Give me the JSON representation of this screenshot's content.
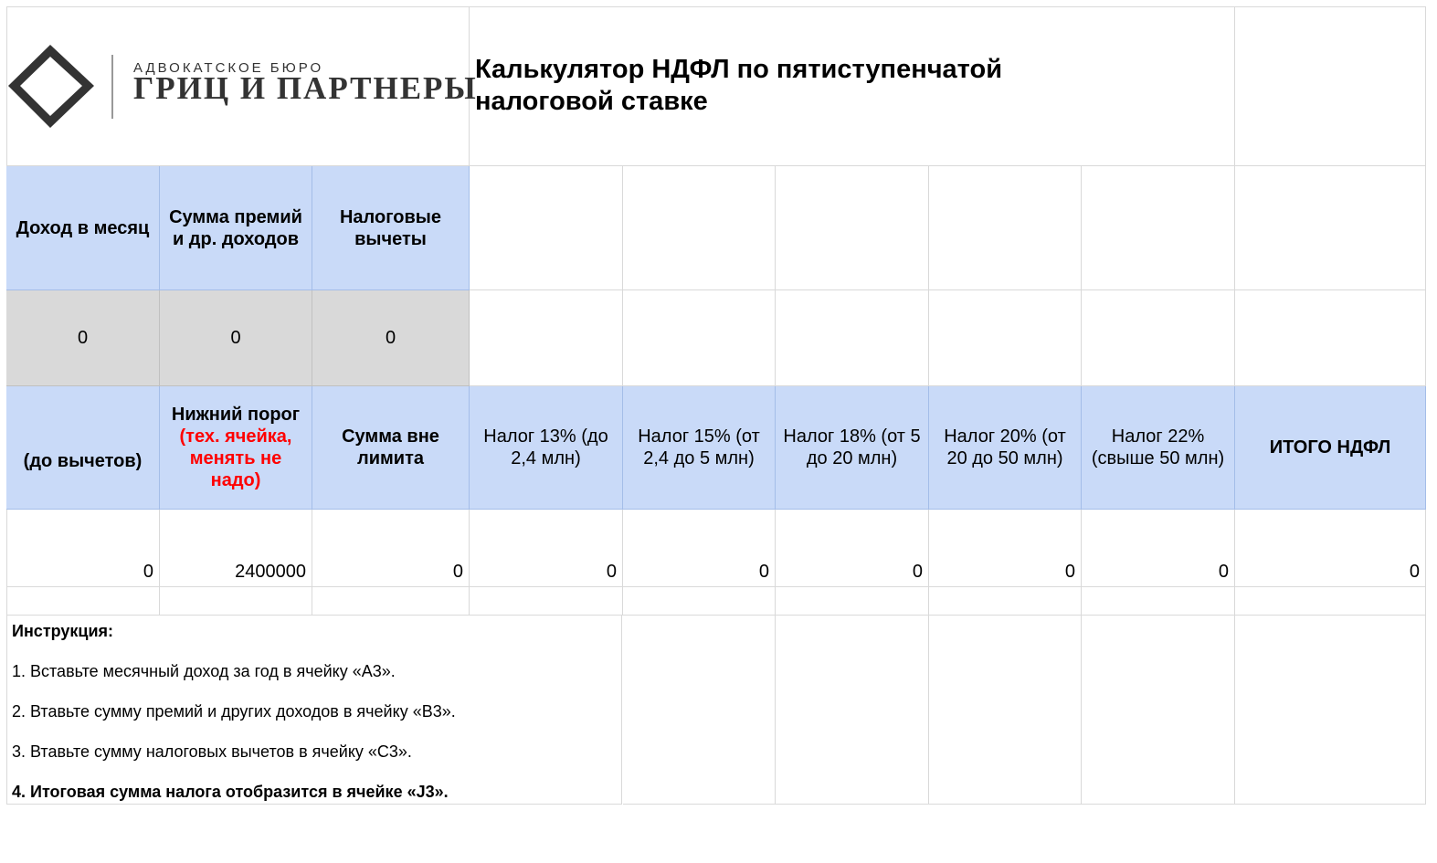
{
  "logo": {
    "subtitle": "АДВОКАТСКОЕ БЮРО",
    "name": "ГРИЦ И ПАРТНЕРЫ"
  },
  "title": "Калькулятор НДФЛ по пятиступенчатой налоговой ставке",
  "input_headers": {
    "income": "Доход в месяц",
    "bonuses": "Сумма премий и др. доходов",
    "deductions": "Налоговые вычеты"
  },
  "input_values": {
    "income": "0",
    "bonuses": "0",
    "deductions": "0"
  },
  "calc_headers": {
    "before_deductions": "(до вычетов)",
    "lower_threshold": "Нижний порог",
    "lower_threshold_note": "(тех. ячейка, менять не надо)",
    "above_limit": "Сумма вне лимита",
    "tax13": "Налог 13% (до 2,4 млн)",
    "tax15": "Налог 15% (от 2,4 до 5 млн)",
    "tax18": "Налог 18% (от 5 до 20 млн)",
    "tax20": "Налог 20% (от 20 до 50 млн)",
    "tax22": "Налог 22% (свыше 50 млн)",
    "total": "ИТОГО НДФЛ"
  },
  "calc_values": [
    "0",
    "2400000",
    "0",
    "0",
    "0",
    "0",
    "0",
    "0",
    "0"
  ],
  "instructions": {
    "heading": "Инструкция:",
    "step1": "1. Вставьте месячный доход за год в ячейку «A3».",
    "step2": "2. Втавьте сумму премий и других доходов в ячейку «B3».",
    "step3": "3. Втавьте сумму налоговых вычетов в ячейку «C3».",
    "step4": "4. Итоговая сумма налога отобразится в ячейке «J3»."
  },
  "colors": {
    "header_blue": "#c9daf8",
    "input_gray": "#d9d9d9",
    "note_red": "#ff0000"
  }
}
